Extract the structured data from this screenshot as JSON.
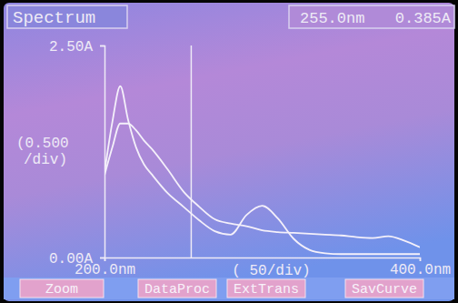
{
  "chart_data": {
    "type": "line",
    "title": "Spectrum",
    "cursor": {
      "x": 255,
      "labels": [
        "255.0nm",
        "0.385A"
      ]
    },
    "y_unit_label": [
      "(0.500",
      "/div)"
    ],
    "x_unit_label": "( 50/div)",
    "buttons": [
      "Zoom",
      "DataProc",
      "ExtTrans",
      "SavCurve"
    ],
    "x": [
      200,
      205,
      210,
      215,
      220,
      225,
      230,
      240,
      250,
      260,
      270,
      280,
      290,
      300,
      310,
      320,
      330,
      340,
      350,
      360,
      370,
      380,
      390,
      400
    ],
    "series": [
      {
        "color": "#f4f0fa",
        "values": [
          1.0,
          1.6,
          2.02,
          1.62,
          1.3,
          1.1,
          0.98,
          0.76,
          0.6,
          0.44,
          0.31,
          0.27,
          0.5,
          0.61,
          0.46,
          0.22,
          0.09,
          0.05,
          0.04,
          0.04,
          0.04,
          0.04,
          0.04,
          0.04
        ]
      },
      {
        "color": "#f4f0fa",
        "values": [
          0.97,
          1.3,
          1.58,
          1.58,
          1.5,
          1.38,
          1.28,
          1.04,
          0.78,
          0.6,
          0.45,
          0.4,
          0.37,
          0.32,
          0.3,
          0.29,
          0.28,
          0.27,
          0.26,
          0.24,
          0.23,
          0.25,
          0.2,
          0.12
        ]
      }
    ],
    "xlim": [
      200,
      400
    ],
    "xticks": [
      {
        "value": 200,
        "label": "200.0nm"
      },
      {
        "value": 400,
        "label": "400.0nm"
      }
    ],
    "ylim": [
      0,
      2.5
    ],
    "yticks": [
      {
        "value": 0,
        "label": "0.00A"
      },
      {
        "value": 2.5,
        "label": "2.50A"
      }
    ],
    "grid": false
  }
}
